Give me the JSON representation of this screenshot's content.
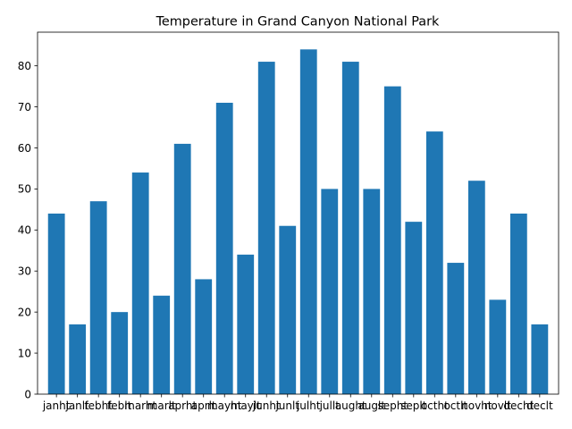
{
  "chart_data": {
    "type": "bar",
    "title": "Temperature in Grand Canyon National Park",
    "xlabel": "",
    "ylabel": "",
    "categories": [
      "janht",
      "janlt",
      "febht",
      "feblt",
      "marht",
      "marlt",
      "aprht",
      "aprlt",
      "mayht",
      "maylt",
      "junht",
      "junlt",
      "julht",
      "jullt",
      "aught",
      "auglt",
      "sepht",
      "seplt",
      "octht",
      "octlt",
      "novht",
      "novlt",
      "decht",
      "declt"
    ],
    "values": [
      44,
      17,
      47,
      20,
      54,
      24,
      61,
      28,
      71,
      34,
      81,
      41,
      84,
      50,
      81,
      50,
      75,
      42,
      64,
      32,
      52,
      23,
      44,
      17
    ],
    "ylim": [
      0,
      88.2
    ],
    "yticks": [
      0,
      10,
      20,
      30,
      40,
      50,
      60,
      70,
      80
    ],
    "grid": false,
    "legend": "none",
    "colors": {
      "bar": "#1f77b4"
    }
  }
}
